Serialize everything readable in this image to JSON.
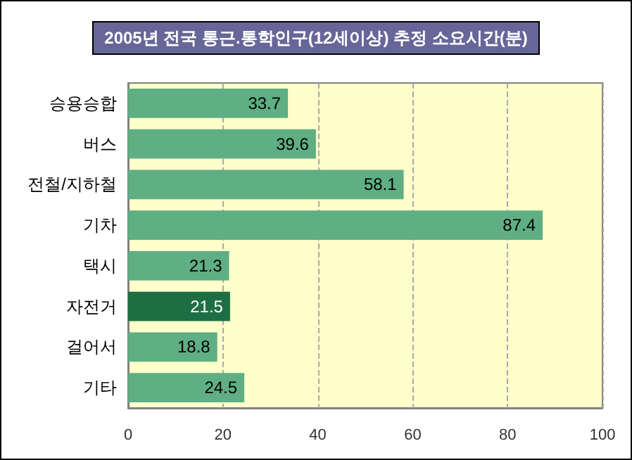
{
  "chart_data": {
    "type": "bar",
    "orientation": "horizontal",
    "title": "2005년 전국 통근.통학인구(12세이상) 추정 소요시간(분)",
    "categories": [
      "승용승합",
      "버스",
      "전철/지하철",
      "기차",
      "택시",
      "자전거",
      "걸어서",
      "기타"
    ],
    "values": [
      33.7,
      39.6,
      58.1,
      87.4,
      21.3,
      21.5,
      18.8,
      24.5
    ],
    "colors": [
      "#5fae84",
      "#5fae84",
      "#5fae84",
      "#5fae84",
      "#5fae84",
      "#1e6e44",
      "#5fae84",
      "#5fae84"
    ],
    "xlim": [
      0,
      100
    ],
    "xticks": [
      0,
      20,
      40,
      60,
      80,
      100
    ],
    "grid": "x",
    "data_labels": true
  }
}
